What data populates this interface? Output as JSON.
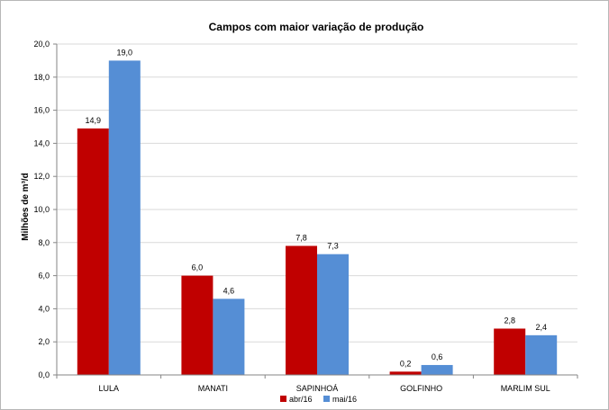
{
  "chart_data": {
    "type": "bar",
    "title": "Campos com maior variação de produção",
    "xlabel": "",
    "ylabel": "Milhões de m³/d",
    "categories": [
      "LULA",
      "MANATI",
      "SAPINHOÁ",
      "GOLFINHO",
      "MARLIM SUL"
    ],
    "series": [
      {
        "name": "abr/16",
        "values": [
          14.9,
          6.0,
          7.8,
          0.2,
          2.8
        ],
        "color": "#c00000"
      },
      {
        "name": "mai/16",
        "values": [
          19.0,
          4.6,
          7.3,
          0.6,
          2.4
        ],
        "color": "#558ed5"
      }
    ],
    "ylim": [
      0,
      20
    ],
    "yticks": [
      "0,0",
      "2,0",
      "4,0",
      "6,0",
      "8,0",
      "10,0",
      "12,0",
      "14,0",
      "16,0",
      "18,0",
      "20,0"
    ],
    "data_labels": [
      [
        "14,9",
        "6,0",
        "7,8",
        "0,2",
        "2,8"
      ],
      [
        "19,0",
        "4,6",
        "7,3",
        "0,6",
        "2,4"
      ]
    ],
    "grid": true,
    "legend": "bottom-center"
  }
}
